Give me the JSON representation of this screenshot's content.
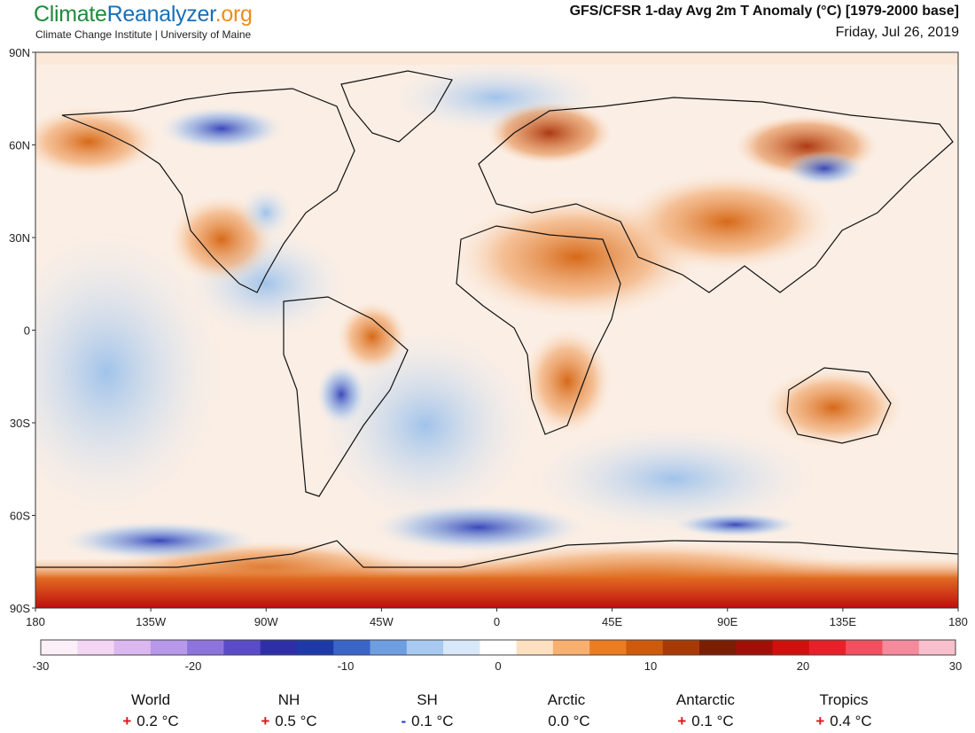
{
  "header": {
    "brand_part1": "Climate",
    "brand_part2": "Reanalyzer",
    "brand_part3": ".org",
    "subtitle": "Climate Change Institute | University of Maine",
    "title": "GFS/CFSR 1-day Avg 2m T Anomaly (°C) [1979-2000 base]",
    "date": "Friday, Jul 26, 2019"
  },
  "map": {
    "lat_labels": [
      "90N",
      "60N",
      "30N",
      "0",
      "30S",
      "60S",
      "90S"
    ],
    "lon_labels": [
      "180",
      "135W",
      "90W",
      "45W",
      "0",
      "45E",
      "90E",
      "135E",
      "180"
    ]
  },
  "colorbar": {
    "tick_labels": [
      "-30",
      "-20",
      "-10",
      "0",
      "10",
      "20",
      "30"
    ],
    "colors": [
      "#fbf0f8",
      "#f2d6f4",
      "#dcb8f0",
      "#b898ea",
      "#8c74dc",
      "#5a4cc8",
      "#2e2ea8",
      "#1e3aa8",
      "#3a64c8",
      "#6f9ee0",
      "#a8caf0",
      "#d8e8f8",
      "#ffffff",
      "#fde0c0",
      "#f8b070",
      "#ec7c20",
      "#d05a0c",
      "#a83a08",
      "#7a1e04",
      "#a01008",
      "#d0100c",
      "#e8202a",
      "#f05060",
      "#f48a9c",
      "#f8c0cc"
    ]
  },
  "stats": [
    {
      "name": "World",
      "sign": "+",
      "value": "0.2 °C"
    },
    {
      "name": "NH",
      "sign": "+",
      "value": "0.5 °C"
    },
    {
      "name": "SH",
      "sign": "-",
      "value": "0.1 °C"
    },
    {
      "name": "Arctic",
      "sign": "",
      "value": "0.0 °C"
    },
    {
      "name": "Antarctic",
      "sign": "+",
      "value": "0.1 °C"
    },
    {
      "name": "Tropics",
      "sign": "+",
      "value": "0.4 °C"
    }
  ]
}
